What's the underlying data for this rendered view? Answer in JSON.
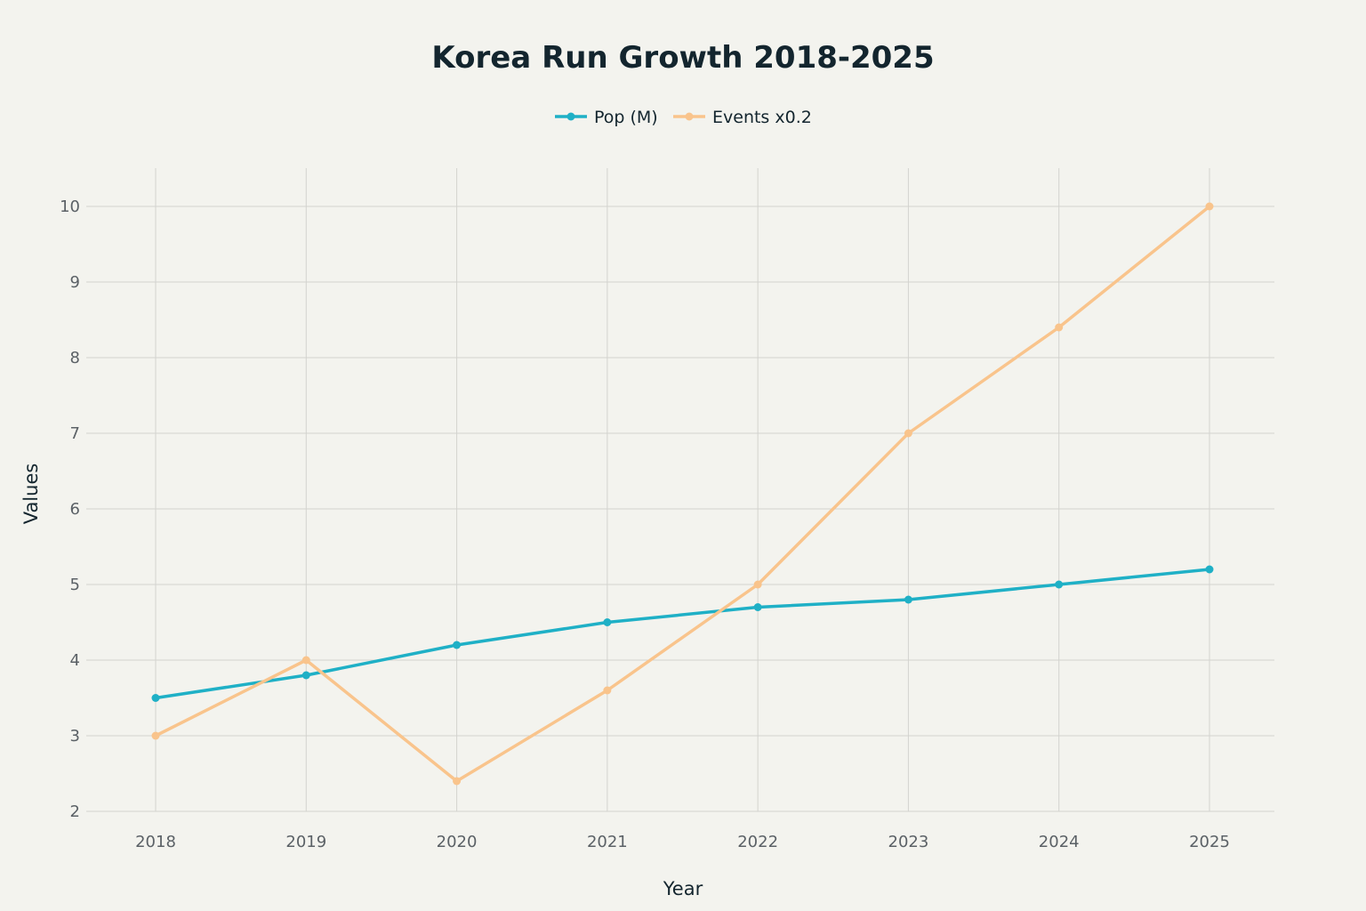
{
  "chart_data": {
    "type": "line",
    "title": "Korea Run Growth 2018-2025",
    "xlabel": "Year",
    "ylabel": "Values",
    "x": [
      "2018",
      "2019",
      "2020",
      "2021",
      "2022",
      "2023",
      "2024",
      "2025"
    ],
    "yticks": [
      2,
      3,
      4,
      5,
      6,
      7,
      8,
      9,
      10
    ],
    "ylim": [
      2,
      10.5
    ],
    "grid": true,
    "legend_position": "top-center",
    "series": [
      {
        "name": "Pop (M)",
        "color": "#1fb0c6",
        "values": [
          3.5,
          3.8,
          4.2,
          4.5,
          4.7,
          4.8,
          5.0,
          5.2
        ]
      },
      {
        "name": "Events x0.2",
        "color": "#f9c48c",
        "values": [
          3.0,
          4.0,
          2.4,
          3.6,
          5.0,
          7.0,
          8.4,
          10.0
        ]
      }
    ]
  }
}
